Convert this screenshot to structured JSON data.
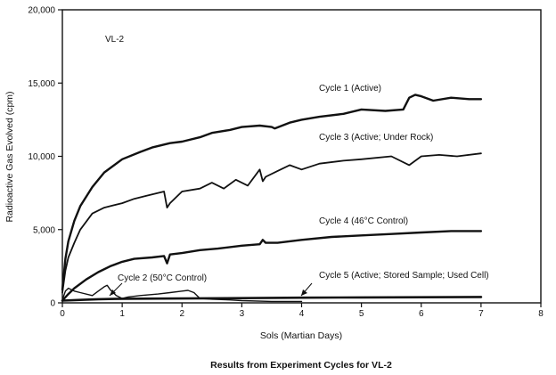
{
  "chart_data": {
    "type": "line",
    "panel_label": "VL-2",
    "xlabel": "Sols (Martian Days)",
    "ylabel": "Radioactive Gas Evolved (cpm)",
    "caption": "Results from Experiment Cycles for VL-2",
    "xlim": [
      0,
      8
    ],
    "ylim": [
      0,
      20000
    ],
    "x_ticks": [
      0,
      1,
      2,
      3,
      4,
      5,
      6,
      7,
      8
    ],
    "y_ticks": [
      0,
      5000,
      10000,
      15000,
      20000
    ],
    "y_tick_labels": [
      "0",
      "5,000",
      "10,000",
      "15,000",
      "20,000"
    ],
    "grid": false,
    "series": [
      {
        "name": "Cycle 1 (Active)",
        "x": [
          0,
          0.05,
          0.1,
          0.2,
          0.3,
          0.5,
          0.7,
          1.0,
          1.3,
          1.5,
          1.8,
          2.0,
          2.3,
          2.5,
          2.8,
          3.0,
          3.3,
          3.5,
          3.55,
          3.8,
          4.0,
          4.3,
          4.7,
          5.0,
          5.4,
          5.7,
          5.8,
          5.9,
          6.0,
          6.2,
          6.5,
          6.8,
          7.0
        ],
        "y": [
          900,
          3000,
          4200,
          5600,
          6600,
          7900,
          8900,
          9800,
          10300,
          10600,
          10900,
          11000,
          11300,
          11600,
          11800,
          12000,
          12100,
          12000,
          11900,
          12300,
          12500,
          12700,
          12900,
          13200,
          13100,
          13200,
          14000,
          14200,
          14100,
          13800,
          14000,
          13900,
          13900
        ]
      },
      {
        "name": "Cycle 3 (Active; Under Rock)",
        "x": [
          0,
          0.05,
          0.1,
          0.2,
          0.3,
          0.5,
          0.7,
          1.0,
          1.2,
          1.4,
          1.7,
          1.75,
          1.8,
          2.0,
          2.3,
          2.5,
          2.7,
          2.9,
          3.1,
          3.3,
          3.35,
          3.4,
          3.6,
          3.8,
          4.0,
          4.3,
          4.7,
          5.0,
          5.5,
          5.8,
          6.0,
          6.3,
          6.6,
          7.0
        ],
        "y": [
          700,
          2200,
          3100,
          4100,
          5000,
          6100,
          6500,
          6800,
          7100,
          7300,
          7600,
          6500,
          6800,
          7600,
          7800,
          8200,
          7800,
          8400,
          8000,
          9100,
          8300,
          8600,
          9000,
          9400,
          9100,
          9500,
          9700,
          9800,
          10000,
          9400,
          10000,
          10100,
          10000,
          10200
        ]
      },
      {
        "name": "Cycle 4 (46°C Control)",
        "x": [
          0,
          0.1,
          0.2,
          0.4,
          0.6,
          0.8,
          1.0,
          1.2,
          1.5,
          1.7,
          1.75,
          1.8,
          2.0,
          2.3,
          2.6,
          3.0,
          3.3,
          3.35,
          3.4,
          3.6,
          4.0,
          4.5,
          5.0,
          5.5,
          6.0,
          6.5,
          7.0
        ],
        "y": [
          150,
          600,
          1000,
          1600,
          2100,
          2500,
          2800,
          3000,
          3100,
          3200,
          2700,
          3300,
          3400,
          3600,
          3700,
          3900,
          4000,
          4300,
          4100,
          4100,
          4300,
          4500,
          4600,
          4700,
          4800,
          4900,
          4900
        ]
      },
      {
        "name": "Cycle 2 (50°C Control)",
        "x": [
          0,
          0.05,
          0.1,
          0.2,
          0.3,
          0.5,
          0.6,
          0.7,
          0.75,
          0.8,
          0.9,
          1.0,
          1.1,
          1.3,
          1.6,
          1.8,
          2.0,
          2.1,
          2.2,
          2.3,
          2.5,
          2.8,
          3.0,
          3.5,
          4.0
        ],
        "y": [
          200,
          800,
          1000,
          800,
          700,
          500,
          800,
          1100,
          1200,
          900,
          500,
          300,
          400,
          500,
          600,
          700,
          800,
          850,
          700,
          300,
          250,
          200,
          150,
          100,
          100
        ]
      },
      {
        "name": "Cycle 5 (Active; Stored Sample; Used Cell)",
        "x": [
          0,
          0.3,
          0.6,
          1.0,
          2.0,
          3.0,
          4.0,
          5.0,
          6.0,
          7.0
        ],
        "y": [
          150,
          200,
          250,
          280,
          300,
          320,
          350,
          370,
          380,
          400
        ]
      }
    ]
  },
  "annotations": [
    {
      "label": "VL-2"
    },
    {
      "label": "Cycle 1 (Active)"
    },
    {
      "label": "Cycle 3 (Active; Under Rock)"
    },
    {
      "label": "Cycle 4 (46°C Control)"
    },
    {
      "label": "Cycle 2 (50°C Control)"
    },
    {
      "label": "Cycle 5 (Active; Stored Sample; Used Cell)"
    }
  ]
}
